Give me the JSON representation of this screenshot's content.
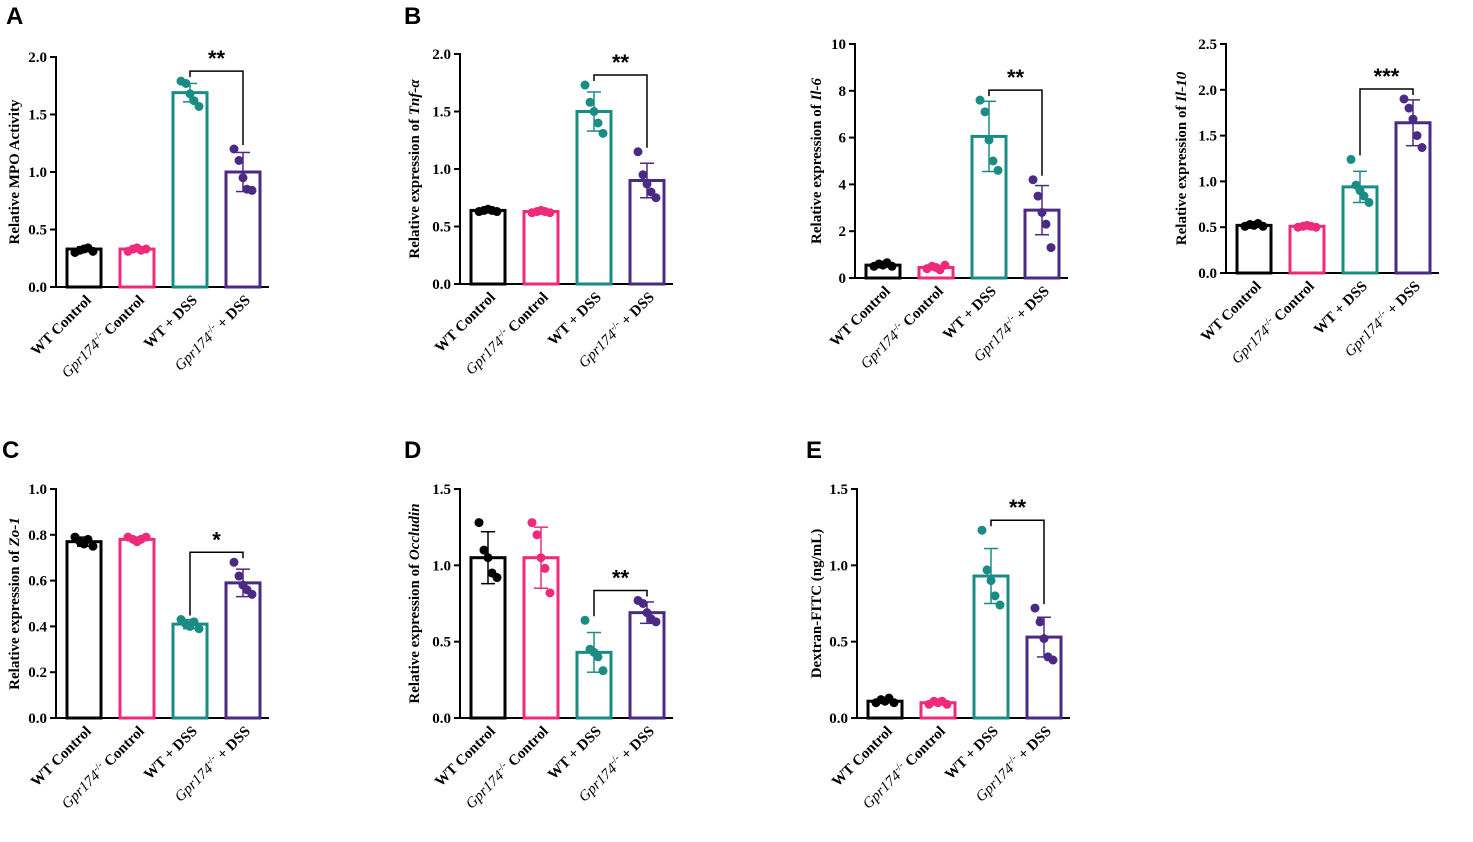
{
  "colors": {
    "wt_control": "#000000",
    "ko_control": "#ee2a7b",
    "wt_dss": "#1a8c84",
    "ko_dss": "#4b2a84"
  },
  "chart_data": [
    {
      "id": "mpo",
      "letter": "A",
      "type": "bar",
      "ylabel_pre": "Relative MPO Activity",
      "ylabel_italic": "",
      "ylim": [
        0,
        2.0
      ],
      "yticks": [
        "0.0",
        "0.5",
        "1.0",
        "1.5",
        "2.0"
      ],
      "categories": [
        {
          "pre": "WT Control",
          "italic": "",
          "sup": "",
          "post": ""
        },
        {
          "pre": "",
          "italic": "Gpr174",
          "sup": "-/-",
          "post": " Control"
        },
        {
          "pre": "WT + DSS",
          "italic": "",
          "sup": "",
          "post": ""
        },
        {
          "pre": "",
          "italic": "Gpr174",
          "sup": "-/-",
          "post": " + DSS"
        }
      ],
      "means": [
        0.33,
        0.33,
        1.69,
        1.0
      ],
      "sd": [
        0.02,
        0.02,
        0.08,
        0.17
      ],
      "points": [
        [
          0.3,
          0.32,
          0.33,
          0.34,
          0.31
        ],
        [
          0.31,
          0.33,
          0.34,
          0.32,
          0.33
        ],
        [
          1.79,
          1.77,
          1.68,
          1.62,
          1.57
        ],
        [
          1.2,
          1.1,
          0.95,
          0.85,
          0.84
        ]
      ],
      "significance": [
        {
          "from": 2,
          "to": 3,
          "label": "**"
        }
      ]
    },
    {
      "id": "tnf",
      "letter": "B",
      "type": "bar",
      "ylabel_pre": "Relative expression of ",
      "ylabel_italic": "Tnf-α",
      "ylim": [
        0,
        2.0
      ],
      "yticks": [
        "0.0",
        "0.5",
        "1.0",
        "1.5",
        "2.0"
      ],
      "categories": [
        {
          "pre": "WT Control",
          "italic": "",
          "sup": "",
          "post": ""
        },
        {
          "pre": "",
          "italic": "Gpr174",
          "sup": "-/-",
          "post": " Control"
        },
        {
          "pre": "WT + DSS",
          "italic": "",
          "sup": "",
          "post": ""
        },
        {
          "pre": "",
          "italic": "Gpr174",
          "sup": "-/-",
          "post": " + DSS"
        }
      ],
      "means": [
        0.64,
        0.63,
        1.5,
        0.9
      ],
      "sd": [
        0.01,
        0.01,
        0.17,
        0.15
      ],
      "points": [
        [
          0.63,
          0.64,
          0.65,
          0.64,
          0.63
        ],
        [
          0.62,
          0.63,
          0.64,
          0.63,
          0.62
        ],
        [
          1.73,
          1.58,
          1.5,
          1.4,
          1.31
        ],
        [
          1.15,
          0.95,
          0.87,
          0.8,
          0.75
        ]
      ],
      "significance": [
        {
          "from": 2,
          "to": 3,
          "label": "**"
        }
      ]
    },
    {
      "id": "il6",
      "letter": "",
      "type": "bar",
      "ylabel_pre": "Relative expression of ",
      "ylabel_italic": "Il-6",
      "ylim": [
        0,
        10
      ],
      "yticks": [
        "0",
        "2",
        "4",
        "6",
        "8",
        "10"
      ],
      "categories": [
        {
          "pre": "WT Control",
          "italic": "",
          "sup": "",
          "post": ""
        },
        {
          "pre": "",
          "italic": "Gpr174",
          "sup": "-/-",
          "post": " Control"
        },
        {
          "pre": "WT + DSS",
          "italic": "",
          "sup": "",
          "post": ""
        },
        {
          "pre": "",
          "italic": "Gpr174",
          "sup": "-/-",
          "post": " + DSS"
        }
      ],
      "means": [
        0.55,
        0.45,
        6.05,
        2.9
      ],
      "sd": [
        0.08,
        0.08,
        1.5,
        1.05
      ],
      "points": [
        [
          0.5,
          0.6,
          0.55,
          0.65,
          0.5
        ],
        [
          0.4,
          0.5,
          0.45,
          0.35,
          0.55
        ],
        [
          7.6,
          7.1,
          5.9,
          5.0,
          4.6
        ],
        [
          4.2,
          3.5,
          2.8,
          2.3,
          1.3
        ]
      ],
      "significance": [
        {
          "from": 2,
          "to": 3,
          "label": "**"
        }
      ]
    },
    {
      "id": "il10",
      "letter": "",
      "type": "bar",
      "ylabel_pre": "Relative expression of ",
      "ylabel_italic": "Il-10",
      "ylim": [
        0,
        2.5
      ],
      "yticks": [
        "0.0",
        "0.5",
        "1.0",
        "1.5",
        "2.0",
        "2.5"
      ],
      "categories": [
        {
          "pre": "WT Control",
          "italic": "",
          "sup": "",
          "post": ""
        },
        {
          "pre": "",
          "italic": "Gpr174",
          "sup": "-/-",
          "post": " Control"
        },
        {
          "pre": "WT + DSS",
          "italic": "",
          "sup": "",
          "post": ""
        },
        {
          "pre": "",
          "italic": "Gpr174",
          "sup": "-/-",
          "post": " + DSS"
        }
      ],
      "means": [
        0.52,
        0.51,
        0.94,
        1.64
      ],
      "sd": [
        0.02,
        0.01,
        0.17,
        0.25
      ],
      "points": [
        [
          0.51,
          0.53,
          0.52,
          0.54,
          0.51
        ],
        [
          0.5,
          0.51,
          0.52,
          0.51,
          0.5
        ],
        [
          1.24,
          0.96,
          0.9,
          0.84,
          0.77
        ],
        [
          1.9,
          1.8,
          1.68,
          1.5,
          1.37
        ]
      ],
      "significance": [
        {
          "from": 2,
          "to": 3,
          "label": "***"
        }
      ]
    },
    {
      "id": "zo1",
      "letter": "C",
      "type": "bar",
      "ylabel_pre": "Relative expression of ",
      "ylabel_italic": "Zo-1",
      "ylim": [
        0,
        1.0
      ],
      "yticks": [
        "0.0",
        "0.2",
        "0.4",
        "0.6",
        "0.8",
        "1.0"
      ],
      "categories": [
        {
          "pre": "WT Control",
          "italic": "",
          "sup": "",
          "post": ""
        },
        {
          "pre": "",
          "italic": "Gpr174",
          "sup": "-/-",
          "post": " Control"
        },
        {
          "pre": "WT + DSS",
          "italic": "",
          "sup": "",
          "post": ""
        },
        {
          "pre": "",
          "italic": "Gpr174",
          "sup": "-/-",
          "post": " + DSS"
        }
      ],
      "means": [
        0.77,
        0.78,
        0.41,
        0.59
      ],
      "sd": [
        0.02,
        0.01,
        0.02,
        0.06
      ],
      "points": [
        [
          0.79,
          0.77,
          0.76,
          0.78,
          0.75
        ],
        [
          0.79,
          0.78,
          0.77,
          0.78,
          0.79
        ],
        [
          0.43,
          0.41,
          0.4,
          0.42,
          0.39
        ],
        [
          0.68,
          0.62,
          0.58,
          0.56,
          0.54
        ]
      ],
      "significance": [
        {
          "from": 2,
          "to": 3,
          "label": "*"
        }
      ]
    },
    {
      "id": "occludin",
      "letter": "D",
      "type": "bar",
      "ylabel_pre": "Relative expression of ",
      "ylabel_italic": "Occludin",
      "ylim": [
        0,
        1.5
      ],
      "yticks": [
        "0.0",
        "0.5",
        "1.0",
        "1.5"
      ],
      "categories": [
        {
          "pre": "WT Control",
          "italic": "",
          "sup": "",
          "post": ""
        },
        {
          "pre": "",
          "italic": "Gpr174",
          "sup": "-/-",
          "post": " Control"
        },
        {
          "pre": "WT + DSS",
          "italic": "",
          "sup": "",
          "post": ""
        },
        {
          "pre": "",
          "italic": "Gpr174",
          "sup": "-/-",
          "post": " + DSS"
        }
      ],
      "means": [
        1.05,
        1.05,
        0.43,
        0.69
      ],
      "sd": [
        0.17,
        0.2,
        0.13,
        0.07
      ],
      "points": [
        [
          1.28,
          1.1,
          1.05,
          0.95,
          0.92
        ],
        [
          1.28,
          1.2,
          1.05,
          0.98,
          0.82
        ],
        [
          0.64,
          0.45,
          0.43,
          0.4,
          0.31
        ],
        [
          0.77,
          0.75,
          0.69,
          0.65,
          0.63
        ]
      ],
      "significance": [
        {
          "from": 2,
          "to": 3,
          "label": "**"
        }
      ]
    },
    {
      "id": "fitc",
      "letter": "E",
      "type": "bar",
      "ylabel_pre": "Dextran-FITC (ng/mL)",
      "ylabel_italic": "",
      "ylim": [
        0,
        1.5
      ],
      "yticks": [
        "0.0",
        "0.5",
        "1.0",
        "1.5"
      ],
      "categories": [
        {
          "pre": "WT Control",
          "italic": "",
          "sup": "",
          "post": ""
        },
        {
          "pre": "",
          "italic": "Gpr174",
          "sup": "-/-",
          "post": " Control"
        },
        {
          "pre": "WT + DSS",
          "italic": "",
          "sup": "",
          "post": ""
        },
        {
          "pre": "",
          "italic": "Gpr174",
          "sup": "-/-",
          "post": " + DSS"
        }
      ],
      "means": [
        0.11,
        0.1,
        0.93,
        0.53
      ],
      "sd": [
        0.01,
        0.01,
        0.18,
        0.13
      ],
      "points": [
        [
          0.1,
          0.12,
          0.11,
          0.13,
          0.1
        ],
        [
          0.09,
          0.11,
          0.1,
          0.11,
          0.09
        ],
        [
          1.23,
          0.97,
          0.9,
          0.8,
          0.74
        ],
        [
          0.72,
          0.63,
          0.52,
          0.4,
          0.38
        ]
      ],
      "significance": [
        {
          "from": 2,
          "to": 3,
          "label": "**"
        }
      ]
    }
  ]
}
